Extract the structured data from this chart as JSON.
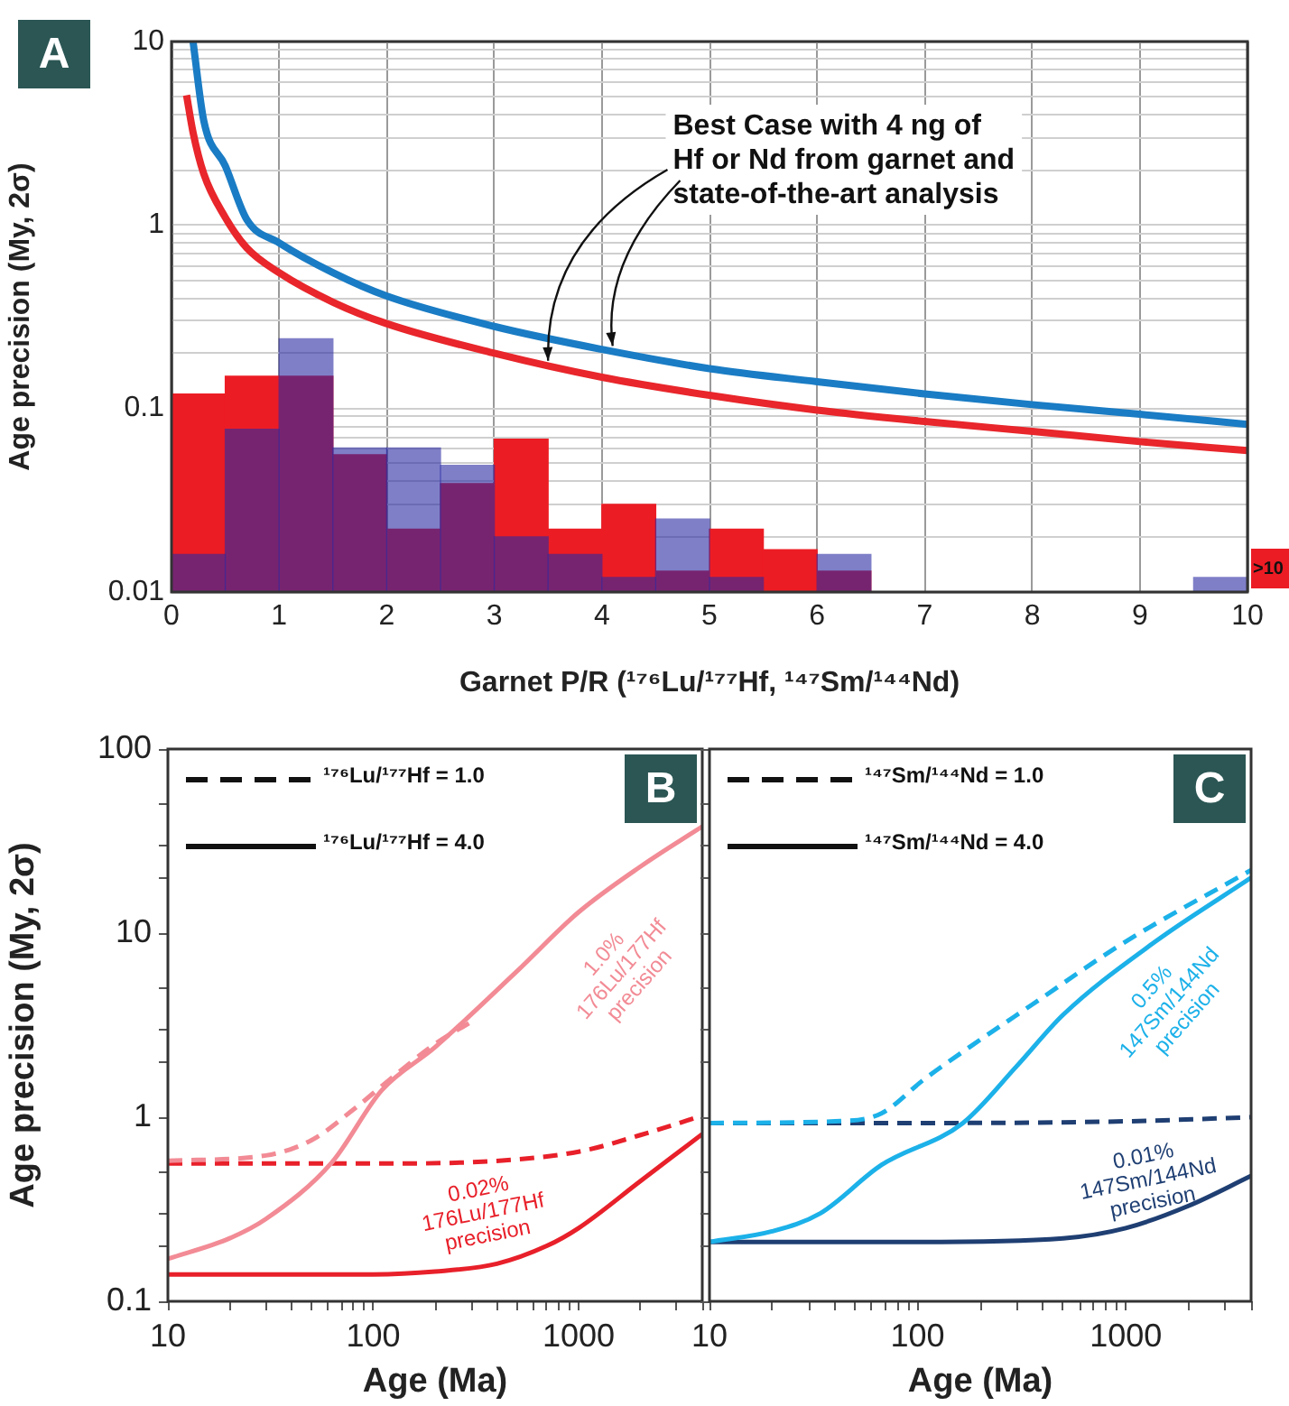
{
  "chart_data": [
    {
      "type": "histogram",
      "title": "A",
      "xlabel": "Garnet P/R (¹⁷⁶Lu/¹⁷⁷Hf, ¹⁴⁷Sm/¹⁴⁴Nd)",
      "ylabel": "Age precision (My, 2σ)",
      "log": true,
      "grid": true,
      "marker": "none",
      "bins": [
        0,
        0.5,
        1,
        1.5,
        2,
        2.5,
        3,
        3.5,
        4,
        4.5,
        5,
        5.5,
        6,
        6.5,
        7,
        7.5,
        8,
        8.5,
        9,
        9.5,
        10
      ],
      "series": [
        {
          "color": "#ec1c24",
          "values": [
            0.12,
            0.15,
            0.15,
            0.056,
            0.022,
            0.039,
            0.068,
            0.022,
            0.03,
            0.013,
            0.022,
            0.017,
            0.013,
            null,
            null,
            null,
            null,
            null,
            null,
            null
          ]
        },
        {
          "color": "#2a2aa3",
          "values": [
            0.016,
            0.077,
            0.24,
            0.061,
            0.061,
            0.049,
            0.02,
            0.016,
            0.012,
            0.025,
            0.012,
            null,
            0.016,
            null,
            null,
            null,
            null,
            null,
            null,
            0.012
          ]
        },
        {
          "type": "line",
          "color": "#1a7cc4",
          "x": [
            0.2,
            0.3,
            0.5,
            0.7,
            1,
            1.5,
            2,
            3,
            4,
            5,
            6,
            7,
            8,
            9,
            10
          ],
          "values": [
            10,
            3.7,
            2.1,
            1.07,
            0.8,
            0.55,
            0.41,
            0.28,
            0.21,
            0.165,
            0.14,
            0.12,
            0.105,
            0.093,
            0.082
          ]
        },
        {
          "type": "line",
          "color": "#e8262b",
          "x": [
            0.14,
            0.2,
            0.3,
            0.5,
            0.7,
            1,
            1.5,
            2,
            3,
            4,
            5,
            6,
            7,
            8,
            9,
            10
          ],
          "values": [
            5.1,
            3.2,
            1.9,
            1.1,
            0.75,
            0.55,
            0.38,
            0.29,
            0.2,
            0.148,
            0.118,
            0.098,
            0.085,
            0.075,
            0.066,
            0.059
          ]
        }
      ],
      "xlim": [
        0,
        10
      ],
      "xticks": [
        0,
        1,
        2,
        3,
        4,
        5,
        6,
        7,
        8,
        9,
        10
      ],
      "ylim": [
        0.01,
        10
      ],
      "yticks": [
        0.01,
        {
          "value": 0.02,
          "label": null
        },
        {
          "value": 0.03,
          "label": null
        },
        {
          "value": 0.04,
          "label": null
        },
        {
          "value": 0.05,
          "label": null
        },
        {
          "value": 0.06,
          "label": null
        },
        {
          "value": 0.07,
          "label": null
        },
        {
          "value": 0.08,
          "label": null
        },
        {
          "value": 0.09,
          "label": null
        },
        0.1,
        {
          "value": 0.2,
          "label": null
        },
        {
          "value": 0.3,
          "label": null
        },
        {
          "value": 0.4,
          "label": null
        },
        {
          "value": 0.5,
          "label": null
        },
        {
          "value": 0.6,
          "label": null
        },
        {
          "value": 0.7,
          "label": null
        },
        {
          "value": 0.8,
          "label": null
        },
        {
          "value": 0.9,
          "label": null
        },
        1,
        {
          "value": 2,
          "label": null
        },
        {
          "value": 3,
          "label": null
        },
        {
          "value": 4,
          "label": null
        },
        {
          "value": 5,
          "label": null
        },
        {
          "value": 6,
          "label": null
        },
        {
          "value": 7,
          "label": null
        },
        {
          "value": 8,
          "label": null
        },
        {
          "value": 9,
          "label": null
        },
        10
      ],
      "annotations": [
        {
          "text": "Best Case with 4 ng of\nHf or Nd from garnet and\nstate-of-the-art analysis",
          "x": 3.5,
          "y": 0.17
        },
        ">10"
      ]
    },
    {
      "type": "line",
      "title": "B",
      "xlabel": "Age (Ma)",
      "ylabel": "Age precision (My, 2σ)",
      "log": "xy",
      "marker": "none",
      "series": [
        {
          "color": "#f28b95",
          "x": [
            10,
            20,
            30,
            63,
            110,
            200,
            500,
            1000,
            2000,
            4000
          ],
          "values": [
            0.17,
            0.22,
            0.28,
            0.57,
            1.4,
            2.4,
            6.2,
            13,
            23,
            38
          ]
        },
        {
          "color": "#f28b95",
          "line_style": "dashed",
          "x": [
            10,
            30,
            50,
            80,
            120,
            200,
            300
          ],
          "values": [
            0.58,
            0.62,
            0.75,
            1.1,
            1.6,
            2.5,
            3.3
          ]
        },
        {
          "color": "#e8202a",
          "line_style": "dashed",
          "x": [
            10,
            100,
            300,
            1000,
            2000,
            4000
          ],
          "values": [
            0.56,
            0.56,
            0.57,
            0.65,
            0.8,
            1.02
          ]
        },
        {
          "color": "#e8202a",
          "x": [
            10,
            100,
            200,
            400,
            700,
            1000,
            2000,
            4000
          ],
          "values": [
            0.14,
            0.14,
            0.145,
            0.16,
            0.2,
            0.25,
            0.45,
            0.81
          ]
        }
      ],
      "xlim": [
        10,
        4000
      ],
      "xticks": [
        10,
        {
          "value": 20,
          "label": null
        },
        {
          "value": 30,
          "label": null
        },
        {
          "value": 40,
          "label": null
        },
        {
          "value": 50,
          "label": null
        },
        {
          "value": 60,
          "label": null
        },
        {
          "value": 70,
          "label": null
        },
        {
          "value": 80,
          "label": null
        },
        {
          "value": 90,
          "label": null
        },
        100,
        {
          "value": 200,
          "label": null
        },
        {
          "value": 300,
          "label": null
        },
        {
          "value": 400,
          "label": null
        },
        {
          "value": 500,
          "label": null
        },
        {
          "value": 600,
          "label": null
        },
        {
          "value": 700,
          "label": null
        },
        {
          "value": 800,
          "label": null
        },
        {
          "value": 900,
          "label": null
        },
        1000,
        {
          "value": 2000,
          "label": null
        },
        {
          "value": 3000,
          "label": null
        },
        {
          "value": 4000,
          "label": null
        }
      ],
      "ylim": [
        0.1,
        100
      ],
      "yticks": [
        0.1,
        {
          "value": 0.2,
          "label": null
        },
        {
          "value": 0.3,
          "label": null
        },
        {
          "value": 0.5,
          "label": null
        },
        1,
        {
          "value": 2,
          "label": null
        },
        {
          "value": 3,
          "label": null
        },
        {
          "value": 5,
          "label": null
        },
        10,
        {
          "value": 20,
          "label": null
        },
        {
          "value": 30,
          "label": null
        },
        {
          "value": 50,
          "label": null
        },
        100
      ],
      "annotations": [
        "¹⁷⁶Lu/¹⁷⁷Hf = 1.0",
        "¹⁷⁶Lu/¹⁷⁷Hf = 4.0",
        "1.0%\n176Lu/177Hf\nprecision",
        "0.02%\n176Lu/177Hf\nprecision"
      ]
    },
    {
      "type": "line",
      "title": "C",
      "xlabel": "Age (Ma)",
      "log": "xy",
      "marker": "none",
      "tick_labels": "x",
      "series": [
        {
          "color": "#1cb1e9",
          "x": [
            10,
            20,
            34,
            67,
            165,
            300,
            500,
            1350,
            4000
          ],
          "values": [
            0.21,
            0.24,
            0.3,
            0.55,
            0.93,
            1.9,
            3.6,
            8.8,
            20
          ]
        },
        {
          "color": "#1cb1e9",
          "line_style": "dashed",
          "x": [
            10,
            40,
            67,
            107,
            182,
            356,
            968,
            4000
          ],
          "values": [
            0.93,
            0.95,
            1.05,
            1.6,
            2.45,
            4.1,
            8.8,
            22
          ]
        },
        {
          "color": "#1f3f73",
          "line_style": "dashed",
          "x": [
            10,
            100,
            1000,
            4000
          ],
          "values": [
            0.93,
            0.93,
            0.95,
            1.0
          ]
        },
        {
          "color": "#1f3f73",
          "x": [
            10,
            100,
            500,
            1000,
            2000,
            4000
          ],
          "values": [
            0.21,
            0.21,
            0.22,
            0.25,
            0.33,
            0.48
          ]
        }
      ],
      "xlim": [
        10,
        4000
      ],
      "xticks": [
        10,
        {
          "value": 20,
          "label": null
        },
        {
          "value": 30,
          "label": null
        },
        {
          "value": 40,
          "label": null
        },
        {
          "value": 50,
          "label": null
        },
        {
          "value": 60,
          "label": null
        },
        {
          "value": 70,
          "label": null
        },
        {
          "value": 80,
          "label": null
        },
        {
          "value": 90,
          "label": null
        },
        100,
        {
          "value": 200,
          "label": null
        },
        {
          "value": 300,
          "label": null
        },
        {
          "value": 400,
          "label": null
        },
        {
          "value": 500,
          "label": null
        },
        {
          "value": 600,
          "label": null
        },
        {
          "value": 700,
          "label": null
        },
        {
          "value": 800,
          "label": null
        },
        {
          "value": 900,
          "label": null
        },
        1000,
        {
          "value": 2000,
          "label": null
        },
        {
          "value": 3000,
          "label": null
        },
        {
          "value": 4000,
          "label": null
        }
      ],
      "ylim": [
        0.1,
        100
      ],
      "yticks": [
        0.1,
        {
          "value": 0.2,
          "label": null
        },
        {
          "value": 0.3,
          "label": null
        },
        {
          "value": 0.5,
          "label": null
        },
        1,
        {
          "value": 2,
          "label": null
        },
        {
          "value": 3,
          "label": null
        },
        {
          "value": 5,
          "label": null
        },
        10,
        {
          "value": 20,
          "label": null
        },
        {
          "value": 30,
          "label": null
        },
        {
          "value": 50,
          "label": null
        },
        100
      ],
      "annotations": [
        "¹⁴⁷Sm/¹⁴⁴Nd = 1.0",
        "¹⁴⁷Sm/¹⁴⁴Nd = 4.0",
        "0.5%\n147Sm/144Nd\nprecision",
        "0.01%\n147Sm/144Nd\nprecision"
      ]
    }
  ]
}
